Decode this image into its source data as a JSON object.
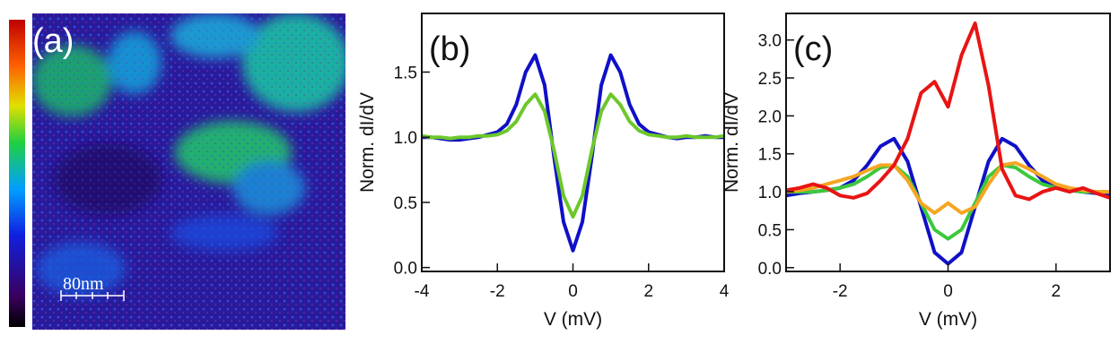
{
  "map": {
    "label": "(a)",
    "scale_bar": "80nm"
  },
  "chart_data": [
    {
      "type": "line",
      "label": "(b)",
      "x_label": "V (mV)",
      "y_label": "Norm. dI/dV",
      "x": [
        -4,
        -3.75,
        -3.5,
        -3.25,
        -3,
        -2.75,
        -2.5,
        -2.25,
        -2,
        -1.75,
        -1.5,
        -1.25,
        -1,
        -0.75,
        -0.5,
        -0.25,
        0,
        0.25,
        0.5,
        0.75,
        1,
        1.25,
        1.5,
        1.75,
        2,
        2.25,
        2.5,
        2.75,
        3,
        3.25,
        3.5,
        3.75,
        4
      ],
      "series": [
        {
          "color": "#1010c8",
          "values": [
            1.0,
            1.0,
            0.99,
            0.98,
            0.98,
            0.99,
            1.0,
            1.02,
            1.04,
            1.1,
            1.25,
            1.5,
            1.63,
            1.4,
            0.85,
            0.35,
            0.13,
            0.35,
            0.85,
            1.4,
            1.63,
            1.5,
            1.25,
            1.1,
            1.04,
            1.02,
            1.0,
            0.99,
            1.0,
            1.0,
            1.01,
            1.0,
            1.0
          ]
        },
        {
          "color": "#6cc82a",
          "values": [
            1.01,
            1.0,
            1.0,
            0.99,
            1.0,
            1.0,
            1.01,
            1.01,
            1.02,
            1.05,
            1.12,
            1.25,
            1.33,
            1.2,
            0.9,
            0.55,
            0.39,
            0.55,
            0.9,
            1.2,
            1.33,
            1.25,
            1.12,
            1.05,
            1.02,
            1.01,
            1.0,
            1.0,
            1.01,
            1.0,
            1.0,
            1.0,
            1.01
          ]
        }
      ],
      "xlim": [
        -4,
        4
      ],
      "xticks": [
        -4,
        -2,
        0,
        2,
        4
      ],
      "ylim": [
        -0.03,
        1.95
      ],
      "yticks": [
        {
          "value": 0,
          "label": "0.0"
        },
        {
          "value": 0.5,
          "label": "0.5"
        },
        {
          "value": 1,
          "label": "1.0"
        },
        {
          "value": 1.5,
          "label": "1.5"
        }
      ]
    },
    {
      "type": "line",
      "label": "(c)",
      "x_label": "V (mV)",
      "y_label": "Norm. dI/dV",
      "x": [
        -3,
        -2.75,
        -2.5,
        -2.25,
        -2,
        -1.75,
        -1.5,
        -1.25,
        -1,
        -0.75,
        -0.5,
        -0.25,
        0,
        0.25,
        0.5,
        0.75,
        1,
        1.25,
        1.5,
        1.75,
        2,
        2.25,
        2.5,
        2.75,
        3
      ],
      "series": [
        {
          "color": "#1010c8",
          "values": [
            0.95,
            0.98,
            1.0,
            1.02,
            1.05,
            1.15,
            1.35,
            1.6,
            1.7,
            1.4,
            0.8,
            0.2,
            0.05,
            0.2,
            0.8,
            1.4,
            1.7,
            1.6,
            1.35,
            1.15,
            1.05,
            1.02,
            1.0,
            0.98,
            0.95
          ]
        },
        {
          "color": "#3cc83c",
          "values": [
            1.0,
            1.0,
            1.0,
            1.02,
            1.05,
            1.1,
            1.2,
            1.32,
            1.35,
            1.2,
            0.85,
            0.5,
            0.38,
            0.5,
            0.85,
            1.2,
            1.35,
            1.32,
            1.2,
            1.1,
            1.05,
            1.02,
            1.0,
            1.0,
            1.0
          ]
        },
        {
          "color": "#f5a623",
          "values": [
            1.0,
            1.02,
            1.05,
            1.1,
            1.15,
            1.2,
            1.28,
            1.35,
            1.35,
            1.15,
            0.85,
            0.72,
            0.85,
            0.72,
            0.8,
            1.1,
            1.35,
            1.38,
            1.3,
            1.2,
            1.1,
            1.05,
            1.02,
            1.0,
            1.0
          ]
        },
        {
          "color": "#e81414",
          "values": [
            1.02,
            1.05,
            1.1,
            1.05,
            0.95,
            0.92,
            0.98,
            1.15,
            1.35,
            1.7,
            2.3,
            2.45,
            2.12,
            2.8,
            3.22,
            2.4,
            1.3,
            0.95,
            0.9,
            1.0,
            1.05,
            1.0,
            1.05,
            0.98,
            0.92
          ]
        }
      ],
      "xlim": [
        -3,
        3
      ],
      "xticks": [
        -2,
        0,
        2
      ],
      "ylim": [
        -0.05,
        3.35
      ],
      "yticks": [
        {
          "value": 0,
          "label": "0.0"
        },
        {
          "value": 0.5,
          "label": "0.5"
        },
        {
          "value": 1,
          "label": "1.0"
        },
        {
          "value": 1.5,
          "label": "1.5"
        },
        {
          "value": 2,
          "label": "2.0"
        },
        {
          "value": 2.5,
          "label": "2.5"
        },
        {
          "value": 3,
          "label": "3.0"
        }
      ]
    }
  ]
}
